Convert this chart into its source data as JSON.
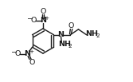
{
  "bg_color": "#ffffff",
  "line_color": "#1a1a1a",
  "line_width": 1.0,
  "font_size": 5.8,
  "fig_width": 1.67,
  "fig_height": 1.03,
  "dpi": 100,
  "xlim": [
    0,
    10
  ],
  "ylim": [
    0,
    6.2
  ]
}
